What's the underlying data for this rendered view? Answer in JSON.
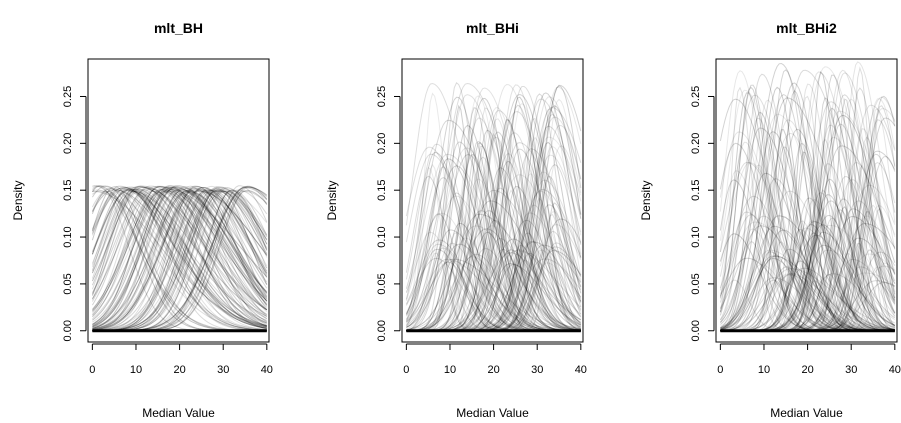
{
  "chart_data": [
    {
      "type": "line",
      "title": "mlt_BH",
      "xlabel": "Median Value",
      "ylabel": "Density",
      "xlim": [
        -1,
        40.5
      ],
      "ylim": [
        -0.012,
        0.29
      ],
      "xticks": [
        "0",
        "10",
        "20",
        "30",
        "40"
      ],
      "yticks": [
        "0.00",
        "0.05",
        "0.10",
        "0.15",
        "0.20",
        "0.25"
      ],
      "series_summary": "many overlapping density curves",
      "curve_count": 120,
      "center_range": [
        0,
        36
      ],
      "peak_range": [
        0.148,
        0.155
      ],
      "width_range": [
        5.5,
        8.5
      ],
      "alpha_range": [
        0.1,
        0.25
      ]
    },
    {
      "type": "line",
      "title": "mlt_BHi",
      "xlabel": "Median Value",
      "ylabel": "Density",
      "xlim": [
        -1,
        40.5
      ],
      "ylim": [
        -0.012,
        0.29
      ],
      "xticks": [
        "0",
        "10",
        "20",
        "30",
        "40"
      ],
      "yticks": [
        "0.00",
        "0.05",
        "0.10",
        "0.15",
        "0.20",
        "0.25"
      ],
      "curve_count": 160,
      "center_range": [
        5,
        36
      ],
      "peak_range": [
        0.07,
        0.27
      ],
      "width_range": [
        1.8,
        5.5
      ],
      "alpha_range": [
        0.08,
        0.2
      ]
    },
    {
      "type": "line",
      "title": "mlt_BHi2",
      "xlabel": "Median Value",
      "ylabel": "Density",
      "xlim": [
        -1,
        40.5
      ],
      "ylim": [
        -0.012,
        0.29
      ],
      "xticks": [
        "0",
        "10",
        "20",
        "30",
        "40"
      ],
      "yticks": [
        "0.00",
        "0.05",
        "0.10",
        "0.15",
        "0.20",
        "0.25"
      ],
      "curve_count": 170,
      "center_range": [
        3,
        38
      ],
      "peak_range": [
        0.05,
        0.29
      ],
      "width_range": [
        1.8,
        5.5
      ],
      "alpha_range": [
        0.08,
        0.2
      ]
    }
  ]
}
